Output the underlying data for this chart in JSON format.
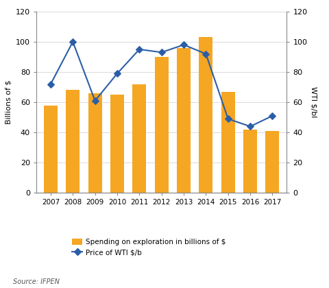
{
  "years": [
    2007,
    2008,
    2009,
    2010,
    2011,
    2012,
    2013,
    2014,
    2015,
    2016,
    2017
  ],
  "spending": [
    58,
    68,
    66,
    65,
    72,
    90,
    96,
    103,
    67,
    42,
    41
  ],
  "wti": [
    72,
    100,
    61,
    79,
    95,
    93,
    98,
    92,
    49,
    44,
    51
  ],
  "bar_color": "#F5A623",
  "line_color": "#2B5EA7",
  "marker_style": "D",
  "marker_facecolor": "#2B5EA7",
  "ylim_left": [
    0,
    120
  ],
  "ylim_right": [
    0,
    120
  ],
  "yticks": [
    0,
    20,
    40,
    60,
    80,
    100,
    120
  ],
  "ylabel_left": "Billions of $",
  "ylabel_right": "WTI $/bl",
  "legend_label_bar": "Spending on exploration in billions of $",
  "legend_label_line": "Price of WTI $/b",
  "source_text": "Source: IFPEN",
  "background_color": "#ffffff",
  "spine_color": "#888888",
  "tick_color": "#444444"
}
